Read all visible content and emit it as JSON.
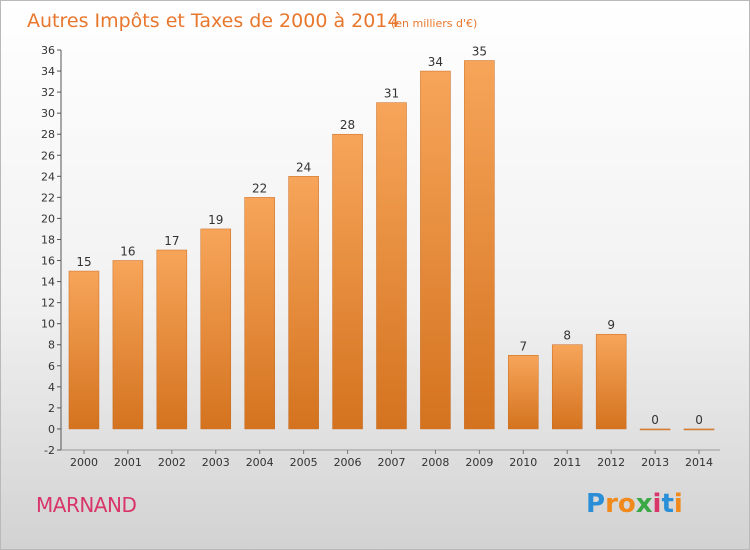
{
  "chart_data": {
    "type": "bar",
    "title": "Autres Impôts et Taxes de 2000 à 2014",
    "subtitle": "(en milliers d'€)",
    "categories": [
      "2000",
      "2001",
      "2002",
      "2003",
      "2004",
      "2005",
      "2006",
      "2007",
      "2008",
      "2009",
      "2010",
      "2011",
      "2012",
      "2013",
      "2014"
    ],
    "values": [
      15,
      16,
      17,
      19,
      22,
      24,
      28,
      31,
      34,
      35,
      7,
      8,
      9,
      0,
      0
    ],
    "ylim": [
      -2,
      36
    ],
    "yticks": [
      "-2",
      "0",
      "2",
      "4",
      "6",
      "8",
      "10",
      "12",
      "14",
      "16",
      "18",
      "20",
      "22",
      "24",
      "26",
      "28",
      "30",
      "32",
      "34",
      "36"
    ],
    "grid": false,
    "bar_color_top": "#f7a55a",
    "bar_color_bottom": "#d4731f"
  },
  "commune": "MARNAND",
  "logo": {
    "letters": [
      "P",
      "r",
      "o",
      "x",
      "i",
      "t",
      "i"
    ],
    "colors": [
      "#2a8fd6",
      "#f08a1c",
      "#f08a1c",
      "#3aa845",
      "#d8356a",
      "#2a8fd6",
      "#f08a1c"
    ]
  }
}
